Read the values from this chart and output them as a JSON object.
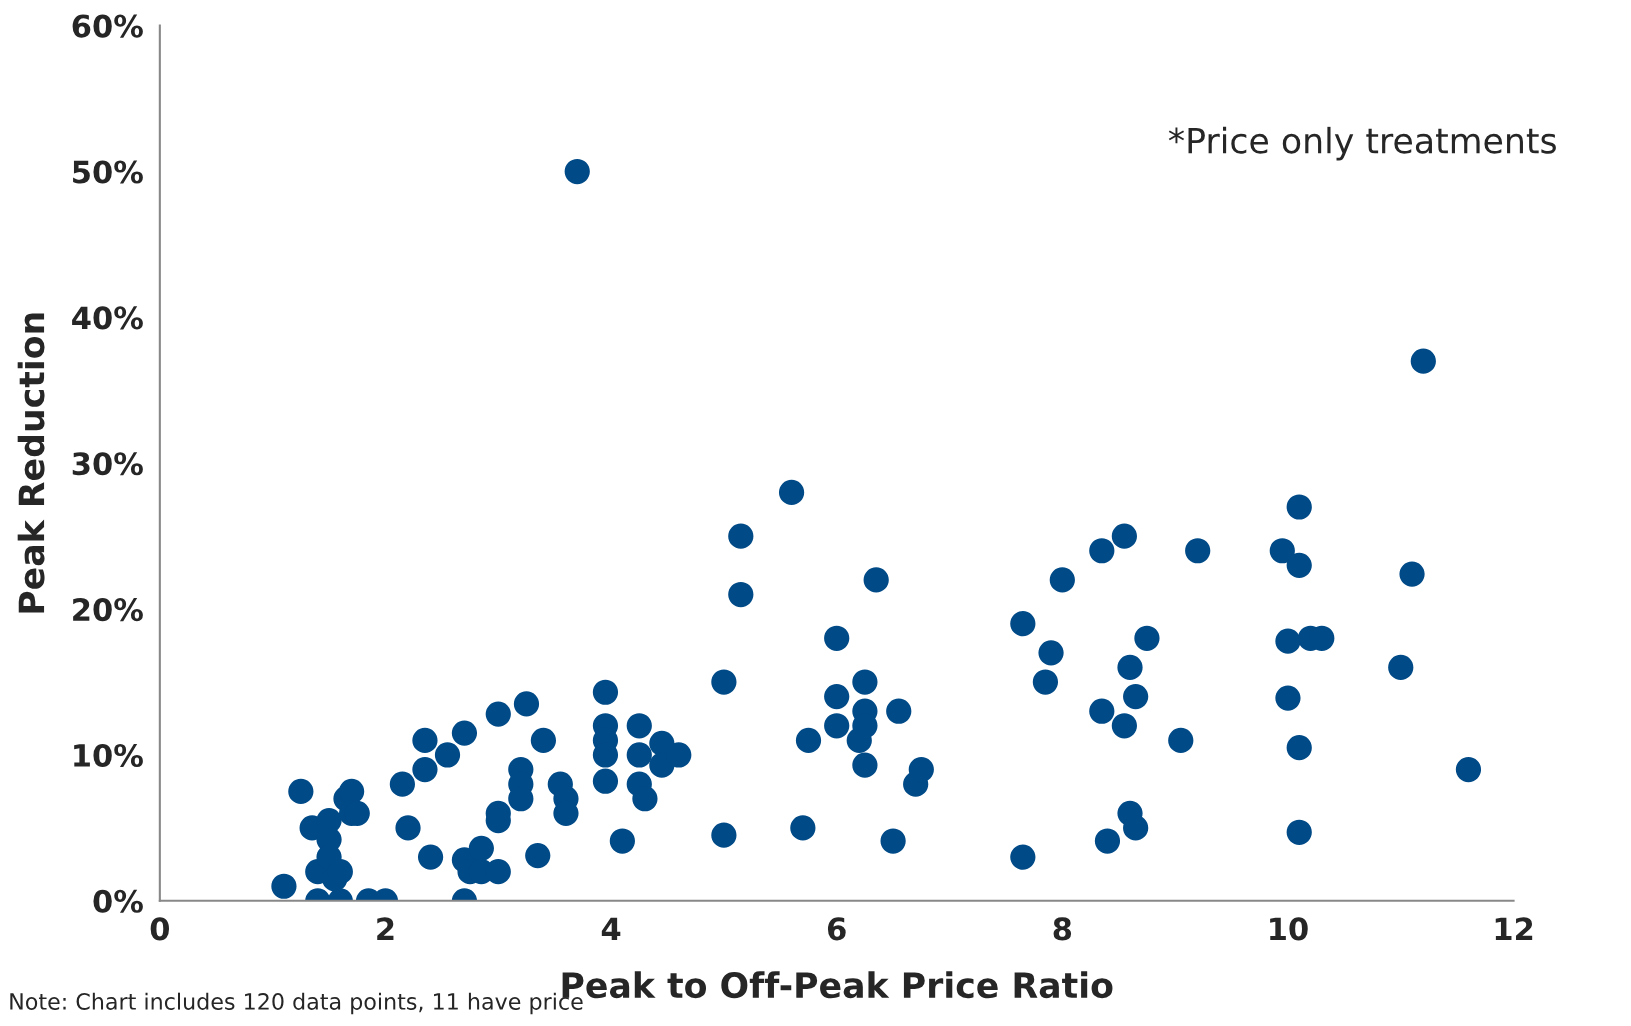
{
  "chart_data": {
    "type": "scatter",
    "xlabel": "Peak to Off-Peak Price Ratio",
    "ylabel": "Peak Reduction",
    "annotations": [
      "*Price only treatments",
      "Note: Chart includes 120 data points, 11 have price"
    ],
    "xlim": [
      0,
      12
    ],
    "xticks": [
      0,
      2,
      4,
      6,
      8,
      10,
      12
    ],
    "ylim": [
      0,
      60
    ],
    "yticks": [
      {
        "value": 0,
        "label": "0%"
      },
      {
        "value": 10,
        "label": "10%"
      },
      {
        "value": 20,
        "label": "20%"
      },
      {
        "value": 30,
        "label": "30%"
      },
      {
        "value": 40,
        "label": "40%"
      },
      {
        "value": 50,
        "label": "50%"
      },
      {
        "value": 60,
        "label": "60%"
      }
    ],
    "grid": false,
    "legend": false,
    "marker": "circle",
    "series": [
      {
        "color": "#004a87",
        "x": [
          1.1,
          1.25,
          1.35,
          1.4,
          1.4,
          1.5,
          1.5,
          1.5,
          1.55,
          1.6,
          1.6,
          1.65,
          1.7,
          1.7,
          1.75,
          1.85,
          2.0,
          2.15,
          2.2,
          2.35,
          2.35,
          2.4,
          2.55,
          2.7,
          2.7,
          2.7,
          2.75,
          2.85,
          2.85,
          3.0,
          3.0,
          3.0,
          3.0,
          3.2,
          3.2,
          3.2,
          3.25,
          3.35,
          3.4,
          3.55,
          3.6,
          3.6,
          3.7,
          3.95,
          3.95,
          3.95,
          3.95,
          3.95,
          4.1,
          4.25,
          4.25,
          4.25,
          4.3,
          4.45,
          4.45,
          4.6,
          5.0,
          5.0,
          5.15,
          5.15,
          5.6,
          5.7,
          5.75,
          6.0,
          6.0,
          6.0,
          6.2,
          6.25,
          6.25,
          6.25,
          6.25,
          6.35,
          6.5,
          6.55,
          6.7,
          6.75,
          7.65,
          7.65,
          7.85,
          7.9,
          8.0,
          8.35,
          8.35,
          8.4,
          8.55,
          8.55,
          8.6,
          8.6,
          8.65,
          8.65,
          8.75,
          9.05,
          9.2,
          9.95,
          10.0,
          10.0,
          10.1,
          10.1,
          10.1,
          10.1,
          10.2,
          10.3,
          11.0,
          11.1,
          11.2,
          11.6
        ],
        "values": [
          1,
          7.5,
          5,
          2,
          0,
          5.5,
          4.2,
          3,
          1.5,
          2,
          0,
          7,
          7.5,
          6,
          6,
          0,
          0,
          8,
          5,
          11,
          9,
          3,
          10,
          11.5,
          2.8,
          0,
          2,
          3.6,
          2,
          12.8,
          6,
          5.5,
          2,
          9,
          8,
          7,
          13.5,
          3.1,
          11,
          8,
          7,
          6,
          50,
          14.3,
          12,
          11,
          10,
          8.2,
          4.1,
          12,
          10,
          8,
          7,
          10.8,
          9.3,
          10,
          15,
          4.5,
          25,
          21,
          28,
          5,
          11,
          18,
          14,
          12,
          11,
          15,
          13,
          12,
          9.3,
          22,
          4.1,
          13,
          8,
          9,
          19,
          3,
          15,
          17,
          22,
          24,
          13,
          4.1,
          25,
          12,
          16,
          6,
          14,
          5,
          18,
          11,
          24,
          24,
          17.8,
          13.9,
          27,
          23,
          10.5,
          4.7,
          18,
          18,
          16,
          22.4,
          37,
          9
        ]
      }
    ]
  }
}
